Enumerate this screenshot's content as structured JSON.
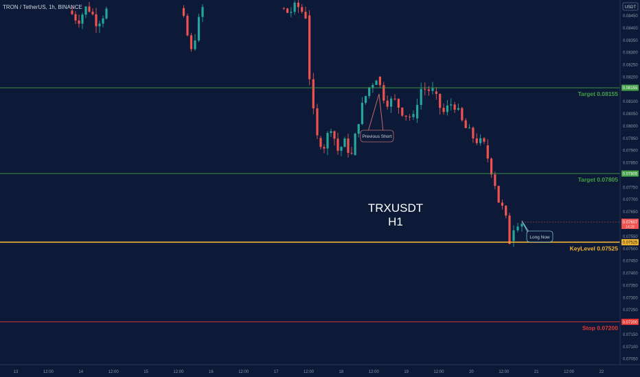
{
  "header": {
    "title": "TRON / TetherUS, 1h, BINANCE"
  },
  "currency_box": "USDT",
  "watermark": {
    "line1": "TRXUSDT",
    "line2": "H1"
  },
  "colors": {
    "background": "#0c1a38",
    "up": "#26a69a",
    "down": "#ef5350",
    "target": "#43a047",
    "keylevel": "#f5b432",
    "stop": "#e53935",
    "axis_text": "#8f96a8"
  },
  "chart_data": {
    "type": "candlestick",
    "symbol": "TRXUSDT",
    "timeframe": "H1",
    "ylim": [
      0.07045,
      0.08485
    ],
    "y_ticks": [
      "0.08450",
      "0.08400",
      "0.08350",
      "0.08300",
      "0.08250",
      "0.08200",
      "0.08150",
      "0.08100",
      "0.08050",
      "0.08000",
      "0.07950",
      "0.07900",
      "0.07850",
      "0.07800",
      "0.07750",
      "0.07700",
      "0.07650",
      "0.07600",
      "0.07550",
      "0.07500",
      "0.07450",
      "0.07400",
      "0.07350",
      "0.07300",
      "0.07250",
      "0.07200",
      "0.07150",
      "0.07100",
      "0.07050"
    ],
    "x_ticks": [
      "13",
      "12:00",
      "14",
      "12:00",
      "15",
      "12:00",
      "16",
      "12:00",
      "17",
      "12:00",
      "18",
      "12:00",
      "19",
      "12:00",
      "20",
      "12:00",
      "21",
      "12:00",
      "22"
    ],
    "current_price": {
      "value": 0.07607,
      "label": "0.07607",
      "countdown": "14:28"
    },
    "levels": [
      {
        "name": "Target",
        "value": 0.08155,
        "label": "Target 0.08155",
        "tag": "0.08155",
        "kind": "target"
      },
      {
        "name": "Target",
        "value": 0.07805,
        "label": "Target 0.07805",
        "tag": "0.07805",
        "kind": "target"
      },
      {
        "name": "KeyLevel",
        "value": 0.07525,
        "label": "KeyLevel 0.07525",
        "tag": "0.07525",
        "kind": "keylevel"
      },
      {
        "name": "Stop",
        "value": 0.072,
        "label": "Stop 0.07200",
        "tag": "0.07200",
        "kind": "stop"
      }
    ],
    "annotations": [
      {
        "text": "Previous Short",
        "kind": "short"
      },
      {
        "text": "Long Now",
        "kind": "long"
      }
    ],
    "candle_segments": [
      {
        "x0": 100,
        "x1": 155,
        "y_start": 0.0847,
        "waypoints": [
          0.0843,
          0.0849,
          0.0842,
          0.0847
        ]
      },
      {
        "x0": 262,
        "x1": 295,
        "y_start": 0.0848,
        "waypoints": [
          0.084,
          0.083,
          0.084,
          0.0848
        ]
      },
      {
        "x0": 408,
        "x1": 445,
        "y_start": 0.0848,
        "waypoints": [
          0.0846,
          0.0849,
          0.0845
        ]
      },
      {
        "x0": 445,
        "x1": 462,
        "y_start": 0.0845,
        "waypoints": [
          0.082,
          0.0805,
          0.0795
        ]
      },
      {
        "x0": 462,
        "x1": 512,
        "y_start": 0.0795,
        "waypoints": [
          0.0792,
          0.08,
          0.079,
          0.0793,
          0.0788
        ]
      },
      {
        "x0": 512,
        "x1": 548,
        "y_start": 0.0788,
        "waypoints": [
          0.0805,
          0.0815,
          0.082
        ]
      },
      {
        "x0": 548,
        "x1": 602,
        "y_start": 0.082,
        "waypoints": [
          0.081,
          0.081,
          0.0805,
          0.0803
        ]
      },
      {
        "x0": 602,
        "x1": 630,
        "y_start": 0.0803,
        "waypoints": [
          0.0815,
          0.0815,
          0.0814
        ]
      },
      {
        "x0": 630,
        "x1": 705,
        "y_start": 0.0814,
        "waypoints": [
          0.0805,
          0.081,
          0.08,
          0.0795,
          0.0792
        ]
      },
      {
        "x0": 705,
        "x1": 742,
        "y_start": 0.0792,
        "waypoints": [
          0.0785,
          0.0778,
          0.0768,
          0.0765,
          0.0753
        ]
      },
      {
        "x0": 742,
        "x1": 760,
        "y_start": 0.0753,
        "waypoints": [
          0.0759,
          0.0761,
          0.07607
        ]
      }
    ]
  }
}
